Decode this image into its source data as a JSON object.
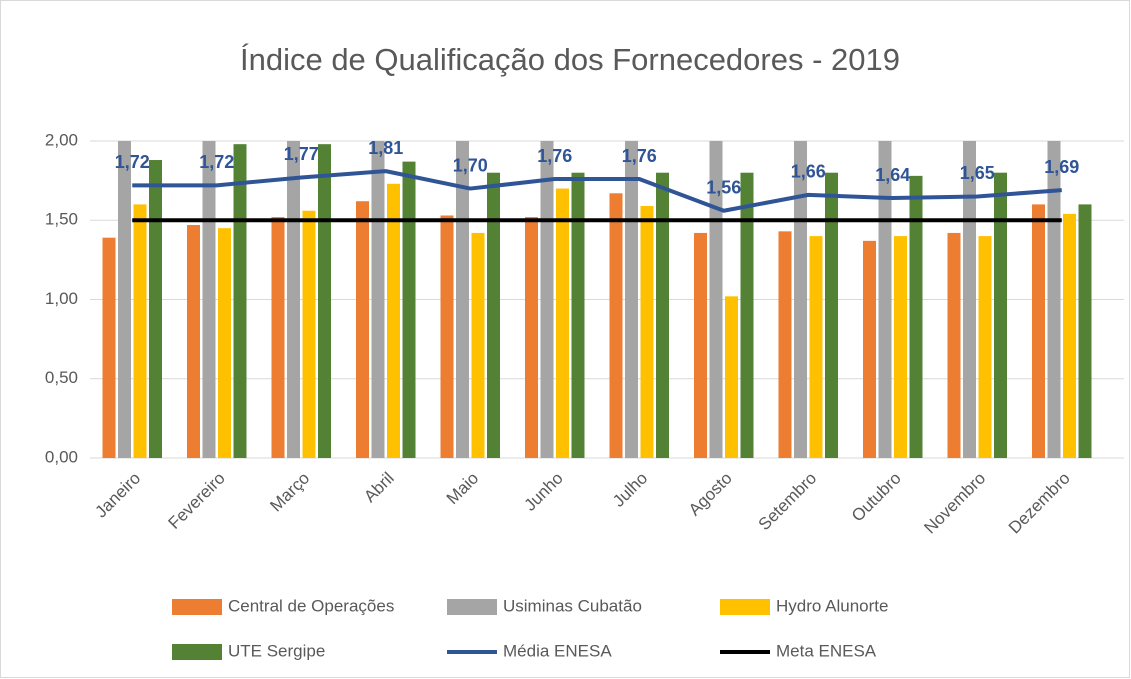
{
  "chart_data": {
    "type": "combo",
    "title": "Índice de Qualificação dos Fornecedores - 2019",
    "categories": [
      "Janeiro",
      "Fevereiro",
      "Março",
      "Abril",
      "Maio",
      "Junho",
      "Julho",
      "Agosto",
      "Setembro",
      "Outubro",
      "Novembro",
      "Dezembro"
    ],
    "ylim": [
      0,
      2
    ],
    "yticks": [
      {
        "value": 0,
        "label": "0,00"
      },
      {
        "value": 0.5,
        "label": "0,50"
      },
      {
        "value": 1,
        "label": "1,00"
      },
      {
        "value": 1.5,
        "label": "1,50"
      },
      {
        "value": 2,
        "label": "2,00"
      }
    ],
    "grid": true,
    "legend": "bottom",
    "series": [
      {
        "name": "Central de Operações",
        "type": "bar",
        "color": "#ED7D31",
        "values": [
          1.39,
          1.47,
          1.52,
          1.62,
          1.53,
          1.52,
          1.67,
          1.42,
          1.43,
          1.37,
          1.42,
          1.6
        ]
      },
      {
        "name": "Usiminas Cubatão",
        "type": "bar",
        "color": "#A5A5A5",
        "values": [
          2,
          2,
          2,
          2,
          2,
          2,
          2,
          2,
          2,
          2,
          2,
          2
        ]
      },
      {
        "name": "Hydro Alunorte",
        "type": "bar",
        "color": "#FFC000",
        "values": [
          1.6,
          1.45,
          1.56,
          1.73,
          1.42,
          1.7,
          1.59,
          1.02,
          1.4,
          1.4,
          1.4,
          1.54
        ]
      },
      {
        "name": "UTE Sergipe",
        "type": "bar",
        "color": "#548235",
        "values": [
          1.88,
          1.98,
          1.98,
          1.87,
          1.8,
          1.8,
          1.8,
          1.8,
          1.8,
          1.78,
          1.8,
          1.6
        ]
      },
      {
        "name": "Média ENESA",
        "type": "line",
        "color": "#2F5597",
        "values": [
          1.72,
          1.72,
          1.77,
          1.81,
          1.7,
          1.76,
          1.76,
          1.56,
          1.66,
          1.64,
          1.65,
          1.69
        ],
        "value_labels": [
          "1,72",
          "1,72",
          "1,77",
          "1,81",
          "1,70",
          "1,76",
          "1,76",
          "1,56",
          "1,66",
          "1,64",
          "1,65",
          "1,69"
        ]
      },
      {
        "name": "Meta ENESA",
        "type": "line",
        "color": "#000000",
        "values": [
          1.5,
          1.5,
          1.5,
          1.5,
          1.5,
          1.5,
          1.5,
          1.5,
          1.5,
          1.5,
          1.5,
          1.5
        ]
      }
    ]
  }
}
